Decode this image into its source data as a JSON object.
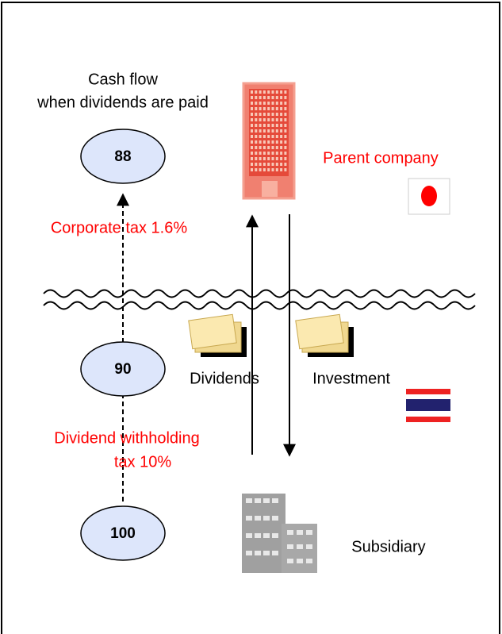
{
  "title": [
    "Cash flow",
    "when dividends are paid"
  ],
  "nodes": [
    {
      "label": 88
    },
    {
      "label": 90
    },
    {
      "label": 100
    }
  ],
  "taxes": [
    {
      "lines": [
        "Corporate tax 1.6%"
      ]
    },
    {
      "lines": [
        "Dividend withholding",
        "tax 10%"
      ]
    }
  ],
  "entities": {
    "parent": "Parent company",
    "subsidiary": "Subsidiary"
  },
  "flows": [
    "Dividends",
    "Investment"
  ]
}
